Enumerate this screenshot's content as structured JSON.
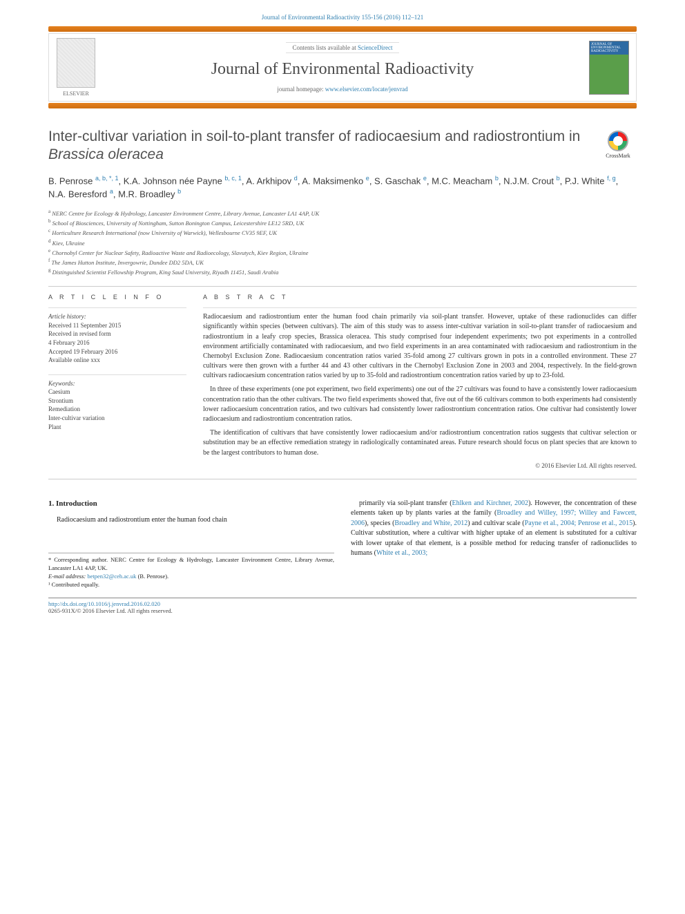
{
  "header": {
    "citation_prefix": "Journal of Environmental Radioactivity 155-156 (2016) 112–121",
    "contents_avail": "Contents lists available at",
    "sciencedirect": "ScienceDirect",
    "journal_title": "Journal of Environmental Radioactivity",
    "homepage_label": "journal homepage:",
    "homepage_url": "www.elsevier.com/locate/jenvrad",
    "publisher": "ELSEVIER",
    "cover_text": "JOURNAL OF ENVIRONMENTAL RADIOACTIVITY"
  },
  "crossmark_label": "CrossMark",
  "title": {
    "main": "Inter-cultivar variation in soil-to-plant transfer of radiocaesium and radiostrontium in ",
    "italic": "Brassica oleracea"
  },
  "authors_html": "B. Penrose <sup>a, b, *, 1</sup>, K.A. Johnson née Payne <sup>b, c, 1</sup>, A. Arkhipov <sup>d</sup>, A. Maksimenko <sup>e</sup>, S. Gaschak <sup>e</sup>, M.C. Meacham <sup>b</sup>, N.J.M. Crout <sup>b</sup>, P.J. White <sup>f, g</sup>, N.A. Beresford <sup>a</sup>, M.R. Broadley <sup>b</sup>",
  "affiliations": [
    {
      "sup": "a",
      "text": "NERC Centre for Ecology & Hydrology, Lancaster Environment Centre, Library Avenue, Lancaster LA1 4AP, UK"
    },
    {
      "sup": "b",
      "text": "School of Biosciences, University of Nottingham, Sutton Bonington Campus, Leicestershire LE12 5RD, UK"
    },
    {
      "sup": "c",
      "text": "Horticulture Research International (now University of Warwick), Wellesbourne CV35 9EF, UK"
    },
    {
      "sup": "d",
      "text": "Kiev, Ukraine"
    },
    {
      "sup": "e",
      "text": "Chornobyl Center for Nuclear Safety, Radioactive Waste and Radioecology, Slavutych, Kiev Region, Ukraine"
    },
    {
      "sup": "f",
      "text": "The James Hutton Institute, Invergowrie, Dundee DD2 5DA, UK"
    },
    {
      "sup": "g",
      "text": "Distinguished Scientist Fellowship Program, King Saud University, Riyadh 11451, Saudi Arabia"
    }
  ],
  "article_info": {
    "head": "A R T I C L E  I N F O",
    "history_head": "Article history:",
    "history": [
      "Received 11 September 2015",
      "Received in revised form",
      "4 February 2016",
      "Accepted 19 February 2016",
      "Available online xxx"
    ],
    "keywords_head": "Keywords:",
    "keywords": [
      "Caesium",
      "Strontium",
      "Remediation",
      "Inter-cultivar variation",
      "Plant"
    ]
  },
  "abstract": {
    "head": "A B S T R A C T",
    "p1": "Radiocaesium and radiostrontium enter the human food chain primarily via soil-plant transfer. However, uptake of these radionuclides can differ significantly within species (between cultivars). The aim of this study was to assess inter-cultivar variation in soil-to-plant transfer of radiocaesium and radiostrontium in a leafy crop species, Brassica oleracea. This study comprised four independent experiments; two pot experiments in a controlled environment artificially contaminated with radiocaesium, and two field experiments in an area contaminated with radiocaesium and radiostrontium in the Chernobyl Exclusion Zone. Radiocaesium concentration ratios varied 35-fold among 27 cultivars grown in pots in a controlled environment. These 27 cultivars were then grown with a further 44 and 43 other cultivars in the Chernobyl Exclusion Zone in 2003 and 2004, respectively. In the field-grown cultivars radiocaesium concentration ratios varied by up to 35-fold and radiostrontium concentration ratios varied by up to 23-fold.",
    "p2": "In three of these experiments (one pot experiment, two field experiments) one out of the 27 cultivars was found to have a consistently lower radiocaesium concentration ratio than the other cultivars. The two field experiments showed that, five out of the 66 cultivars common to both experiments had consistently lower radiocaesium concentration ratios, and two cultivars had consistently lower radiostrontium concentration ratios. One cultivar had consistently lower radiocaesium and radiostrontium concentration ratios.",
    "p3": "The identification of cultivars that have consistently lower radiocaesium and/or radiostrontium concentration ratios suggests that cultivar selection or substitution may be an effective remediation strategy in radiologically contaminated areas. Future research should focus on plant species that are known to be the largest contributors to human dose.",
    "copyright": "© 2016 Elsevier Ltd. All rights reserved."
  },
  "intro": {
    "heading": "1. Introduction",
    "left": "Radiocaesium and radiostrontium enter the human food chain",
    "right_parts": [
      {
        "t": "primarily via soil-plant transfer ("
      },
      {
        "l": "Ehlken and Kirchner, 2002"
      },
      {
        "t": "). However, the concentration of these elements taken up by plants varies at the family ("
      },
      {
        "l": "Broadley and Willey, 1997; Willey and Fawcett, 2006"
      },
      {
        "t": "), species ("
      },
      {
        "l": "Broadley and White, 2012"
      },
      {
        "t": ") and cultivar scale ("
      },
      {
        "l": "Payne et al., 2004; Penrose et al., 2015"
      },
      {
        "t": "). Cultivar substitution, where a cultivar with higher uptake of an element is substituted for a cultivar with lower uptake of that element, is a possible method for reducing transfer of radionuclides to humans ("
      },
      {
        "l": "White et al., 2003;"
      }
    ]
  },
  "footnotes": {
    "corr": "* Corresponding author. NERC Centre for Ecology & Hydrology, Lancaster Environment Centre, Library Avenue, Lancaster LA1 4AP, UK.",
    "email_label": "E-mail address:",
    "email": "betpen32@ceh.ac.uk",
    "email_who": "(B. Penrose).",
    "contrib": "¹ Contributed equally."
  },
  "footer": {
    "doi": "http://dx.doi.org/10.1016/j.jenvrad.2016.02.020",
    "issn": "0265-931X/© 2016 Elsevier Ltd. All rights reserved."
  },
  "colors": {
    "orange": "#e4801e",
    "link": "#2f7fb0",
    "text": "#333333"
  }
}
